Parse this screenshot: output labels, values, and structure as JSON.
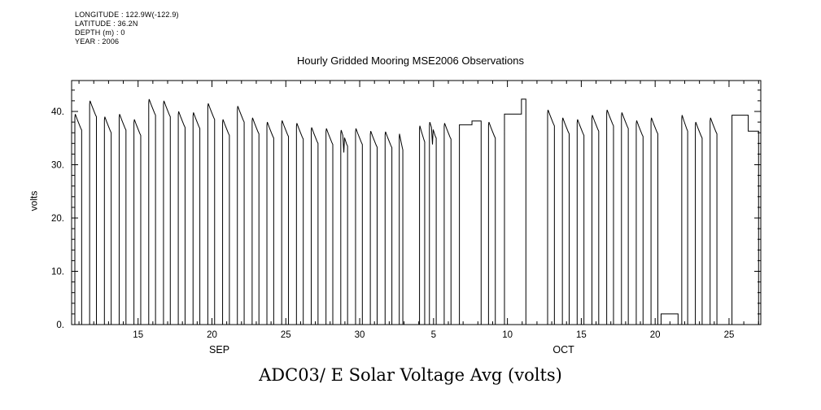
{
  "chart_data": {
    "type": "line",
    "title": "Hourly Gridded Mooring MSE2006 Observations",
    "footer_title": "ADC03/ E Solar Voltage Avg (volts)",
    "header_info": [
      "LONGITUDE : 122.9W(-122.9)",
      "LATITUDE : 36.2N",
      "DEPTH (m) : 0",
      "YEAR : 2006"
    ],
    "line_color": "#000000",
    "y_axis": {
      "label": "volts",
      "lim": [
        0,
        45.8
      ],
      "minor_step": 2,
      "major_ticks": [
        {
          "v": 0,
          "label": "0."
        },
        {
          "v": 10,
          "label": "10."
        },
        {
          "v": 20,
          "label": "20."
        },
        {
          "v": 30,
          "label": "30."
        },
        {
          "v": 40,
          "label": "40."
        }
      ]
    },
    "x_axis": {
      "lim": [
        0,
        46.65
      ],
      "minor_step": 1,
      "major_ticks": [
        {
          "d": 4.5,
          "label": "15"
        },
        {
          "d": 9.5,
          "label": "20"
        },
        {
          "d": 14.5,
          "label": "25"
        },
        {
          "d": 19.5,
          "label": "30"
        },
        {
          "d": 24.5,
          "label": "5"
        },
        {
          "d": 29.5,
          "label": "10"
        },
        {
          "d": 34.5,
          "label": "15"
        },
        {
          "d": 39.5,
          "label": "20"
        },
        {
          "d": 44.5,
          "label": "25"
        }
      ],
      "month_labels": [
        {
          "d": 10.0,
          "label": "SEP"
        },
        {
          "d": 33.3,
          "label": "OCT"
        }
      ]
    },
    "series_name": "E Solar Voltage Avg",
    "units": "volts",
    "series": [
      {
        "type": "solar",
        "d": 0,
        "date": "2006-09-11",
        "peak": 39.5
      },
      {
        "type": "solar",
        "d": 1,
        "date": "2006-09-12",
        "peak": 42.0
      },
      {
        "type": "solar",
        "d": 2,
        "date": "2006-09-13",
        "peak": 39.0
      },
      {
        "type": "solar",
        "d": 3,
        "date": "2006-09-14",
        "peak": 39.5
      },
      {
        "type": "solar",
        "d": 4,
        "date": "2006-09-15",
        "peak": 38.5
      },
      {
        "type": "solar",
        "d": 5,
        "date": "2006-09-16",
        "peak": 42.3
      },
      {
        "type": "solar",
        "d": 6,
        "date": "2006-09-17",
        "peak": 42.0
      },
      {
        "type": "solar",
        "d": 7,
        "date": "2006-09-18",
        "peak": 40.0
      },
      {
        "type": "solar",
        "d": 8,
        "date": "2006-09-19",
        "peak": 39.8
      },
      {
        "type": "solar",
        "d": 9,
        "date": "2006-09-20",
        "peak": 41.5
      },
      {
        "type": "solar",
        "d": 10,
        "date": "2006-09-21",
        "peak": 38.5
      },
      {
        "type": "solar",
        "d": 11,
        "date": "2006-09-22",
        "peak": 41.0
      },
      {
        "type": "solar",
        "d": 12,
        "date": "2006-09-23",
        "peak": 38.8
      },
      {
        "type": "solar",
        "d": 13,
        "date": "2006-09-24",
        "peak": 38.0
      },
      {
        "type": "solar",
        "d": 14,
        "date": "2006-09-25",
        "peak": 38.3
      },
      {
        "type": "solar",
        "d": 15,
        "date": "2006-09-26",
        "peak": 37.8
      },
      {
        "type": "solar",
        "d": 16,
        "date": "2006-09-27",
        "peak": 37.0
      },
      {
        "type": "solar",
        "d": 17,
        "date": "2006-09-28",
        "peak": 36.8
      },
      {
        "type": "solar",
        "d": 18,
        "date": "2006-09-29",
        "peak": 36.5,
        "notch": true
      },
      {
        "type": "solar",
        "d": 19,
        "date": "2006-09-30",
        "peak": 36.8
      },
      {
        "type": "solar",
        "d": 20,
        "date": "2006-10-01",
        "peak": 36.3
      },
      {
        "type": "solar",
        "d": 21,
        "date": "2006-10-02",
        "peak": 36.2
      },
      {
        "type": "solar",
        "d": 22,
        "date": "2006-10-03",
        "peak": 35.8,
        "start": 0.18,
        "end": 0.42
      },
      {
        "type": "solar",
        "d": 23,
        "date": "2006-10-04",
        "peak": 37.3,
        "start": 0.55,
        "end": 0.9
      },
      {
        "type": "solar",
        "d": 24,
        "date": "2006-10-05",
        "peak": 38.0,
        "notch": true
      },
      {
        "type": "solar",
        "d": 25,
        "date": "2006-10-06",
        "peak": 37.8
      },
      {
        "type": "flat",
        "d0": 26.25,
        "d1": 27.1,
        "date": "2006-10-07",
        "level": 37.5,
        "rise": true,
        "drop": false
      },
      {
        "type": "flat",
        "d0": 27.1,
        "d1": 27.72,
        "date": "2006-10-08",
        "level": 38.2,
        "rise": false,
        "drop": true
      },
      {
        "type": "solar",
        "d": 28,
        "date": "2006-10-09",
        "peak": 38.0
      },
      {
        "type": "flat",
        "d0": 29.3,
        "d1": 30.45,
        "date": "2006-10-10",
        "level": 39.5,
        "rise": true,
        "drop": false
      },
      {
        "type": "flat",
        "d0": 30.45,
        "d1": 30.75,
        "date": "2006-10-11",
        "level": 42.3,
        "rise": false,
        "drop": true
      },
      {
        "type": "solar",
        "d": 32,
        "date": "2006-10-13",
        "peak": 40.3
      },
      {
        "type": "solar",
        "d": 33,
        "date": "2006-10-14",
        "peak": 38.8
      },
      {
        "type": "solar",
        "d": 34,
        "date": "2006-10-15",
        "peak": 38.5
      },
      {
        "type": "solar",
        "d": 35,
        "date": "2006-10-16",
        "peak": 39.3
      },
      {
        "type": "solar",
        "d": 36,
        "date": "2006-10-17",
        "peak": 40.3
      },
      {
        "type": "solar",
        "d": 37,
        "date": "2006-10-18",
        "peak": 39.8
      },
      {
        "type": "solar",
        "d": 38,
        "date": "2006-10-19",
        "peak": 38.3
      },
      {
        "type": "solar",
        "d": 39,
        "date": "2006-10-20",
        "peak": 38.8
      },
      {
        "type": "flat",
        "d0": 39.9,
        "d1": 41.05,
        "date": "2006-10-21",
        "level": 2.0,
        "rise": true,
        "drop": true
      },
      {
        "type": "solar",
        "d": 41,
        "date": "2006-10-22",
        "peak": 39.3,
        "start": 0.3,
        "end": 0.7
      },
      {
        "type": "solar",
        "d": 42,
        "date": "2006-10-23",
        "peak": 38.0
      },
      {
        "type": "solar",
        "d": 43,
        "date": "2006-10-24",
        "peak": 38.8
      },
      {
        "type": "flat",
        "d0": 44.7,
        "d1": 45.8,
        "date": "2006-10-25",
        "level": 39.3,
        "rise": true,
        "drop": false
      },
      {
        "type": "flat",
        "d0": 45.8,
        "d1": 46.5,
        "date": "2006-10-27",
        "level": 36.3,
        "rise": false,
        "drop": true
      }
    ]
  }
}
